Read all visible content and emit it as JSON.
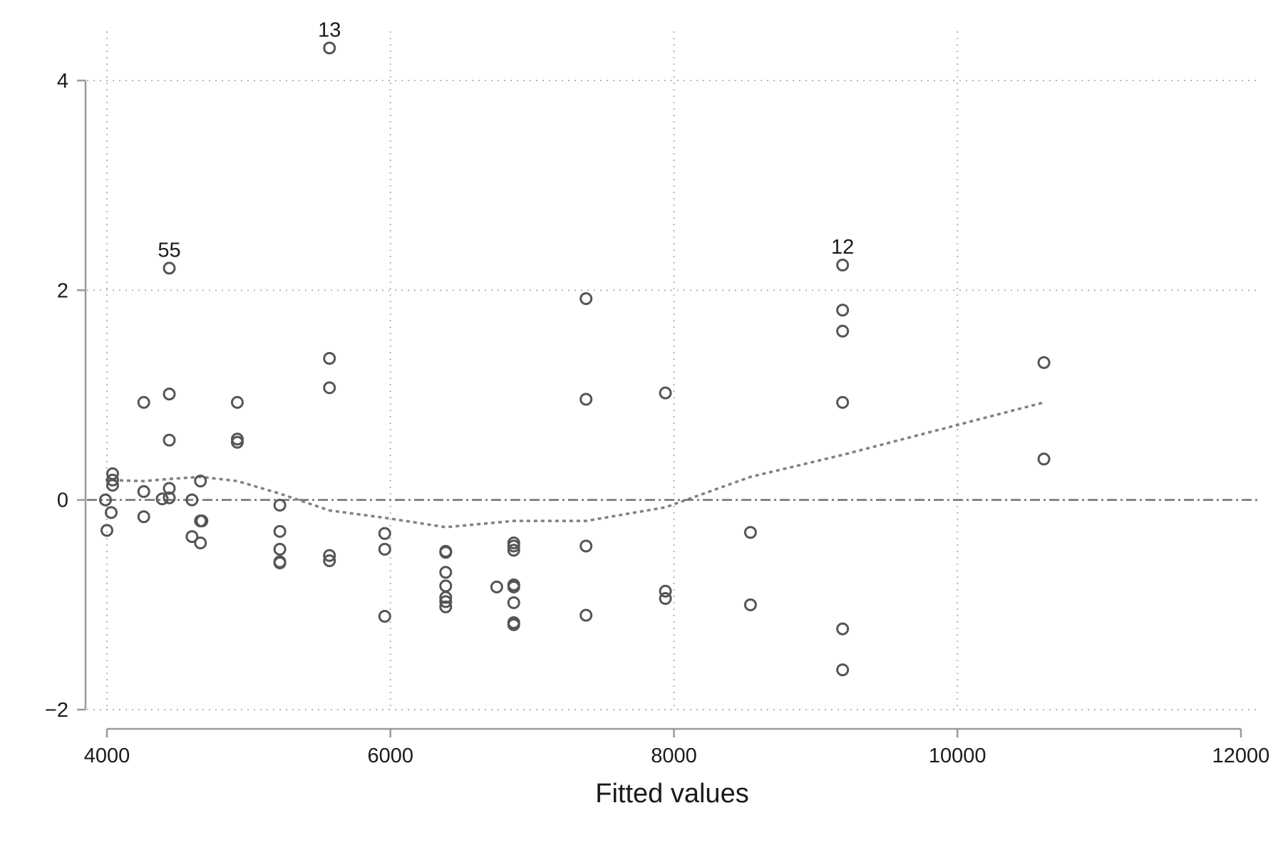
{
  "chart_data": {
    "type": "scatter",
    "title": "",
    "xlabel": "Fitted values",
    "ylabel": "",
    "xlim": [
      4000,
      12000
    ],
    "ylim": [
      -2,
      4
    ],
    "x_ticks": [
      4000,
      6000,
      8000,
      10000,
      12000
    ],
    "x_tick_labels": [
      "4000",
      "6000",
      "8000",
      "10000",
      "12000"
    ],
    "y_ticks": [
      -2,
      0,
      2,
      4
    ],
    "y_tick_labels": [
      "−2",
      "0",
      "2",
      "4"
    ],
    "grid": true,
    "reference_line_y": 0,
    "colors": {
      "points": "#555555",
      "smooth": "#808080",
      "reference": "#707070",
      "grid": "#b5b5b5",
      "axis": "#9a9a9a"
    },
    "points": [
      {
        "x": 3990,
        "y": 0.0
      },
      {
        "x": 4000,
        "y": -0.29
      },
      {
        "x": 4030,
        "y": -0.12
      },
      {
        "x": 4040,
        "y": 0.25
      },
      {
        "x": 4040,
        "y": 0.19
      },
      {
        "x": 4040,
        "y": 0.14
      },
      {
        "x": 4260,
        "y": 0.93
      },
      {
        "x": 4260,
        "y": 0.08
      },
      {
        "x": 4260,
        "y": -0.16
      },
      {
        "x": 4390,
        "y": 0.01
      },
      {
        "x": 4440,
        "y": 2.21
      },
      {
        "x": 4440,
        "y": 1.01
      },
      {
        "x": 4440,
        "y": 0.57
      },
      {
        "x": 4440,
        "y": 0.11
      },
      {
        "x": 4440,
        "y": 0.02
      },
      {
        "x": 4600,
        "y": 0.0
      },
      {
        "x": 4600,
        "y": -0.35
      },
      {
        "x": 4660,
        "y": 0.18
      },
      {
        "x": 4660,
        "y": -0.2
      },
      {
        "x": 4660,
        "y": -0.41
      },
      {
        "x": 4670,
        "y": -0.2
      },
      {
        "x": 4920,
        "y": 0.93
      },
      {
        "x": 4920,
        "y": 0.58
      },
      {
        "x": 4920,
        "y": 0.55
      },
      {
        "x": 5220,
        "y": -0.05
      },
      {
        "x": 5220,
        "y": -0.3
      },
      {
        "x": 5220,
        "y": -0.47
      },
      {
        "x": 5220,
        "y": -0.59
      },
      {
        "x": 5220,
        "y": -0.6
      },
      {
        "x": 5570,
        "y": 4.31
      },
      {
        "x": 5570,
        "y": 1.35
      },
      {
        "x": 5570,
        "y": 1.07
      },
      {
        "x": 5570,
        "y": -0.53
      },
      {
        "x": 5570,
        "y": -0.58
      },
      {
        "x": 5960,
        "y": -0.32
      },
      {
        "x": 5960,
        "y": -0.47
      },
      {
        "x": 5960,
        "y": -1.11
      },
      {
        "x": 6390,
        "y": -0.49
      },
      {
        "x": 6390,
        "y": -0.5
      },
      {
        "x": 6390,
        "y": -0.69
      },
      {
        "x": 6390,
        "y": -0.82
      },
      {
        "x": 6390,
        "y": -0.93
      },
      {
        "x": 6390,
        "y": -0.97
      },
      {
        "x": 6390,
        "y": -1.02
      },
      {
        "x": 6750,
        "y": -0.83
      },
      {
        "x": 6870,
        "y": -0.41
      },
      {
        "x": 6870,
        "y": -0.44
      },
      {
        "x": 6870,
        "y": -0.48
      },
      {
        "x": 6870,
        "y": -0.81
      },
      {
        "x": 6870,
        "y": -0.83
      },
      {
        "x": 6870,
        "y": -0.98
      },
      {
        "x": 6870,
        "y": -1.17
      },
      {
        "x": 6870,
        "y": -1.19
      },
      {
        "x": 7380,
        "y": 1.92
      },
      {
        "x": 7380,
        "y": 0.96
      },
      {
        "x": 7380,
        "y": -0.44
      },
      {
        "x": 7380,
        "y": -1.1
      },
      {
        "x": 7940,
        "y": 1.02
      },
      {
        "x": 7940,
        "y": -0.87
      },
      {
        "x": 7940,
        "y": -0.94
      },
      {
        "x": 8540,
        "y": -0.31
      },
      {
        "x": 8540,
        "y": -1.0
      },
      {
        "x": 9190,
        "y": 2.24
      },
      {
        "x": 9190,
        "y": 1.81
      },
      {
        "x": 9190,
        "y": 1.61
      },
      {
        "x": 9190,
        "y": 0.93
      },
      {
        "x": 9190,
        "y": -1.23
      },
      {
        "x": 9190,
        "y": -1.62
      },
      {
        "x": 10610,
        "y": 1.31
      },
      {
        "x": 10610,
        "y": 0.39
      }
    ],
    "annotations": [
      {
        "text": "13",
        "x": 5570,
        "y": 4.31
      },
      {
        "text": "55",
        "x": 4440,
        "y": 2.21
      },
      {
        "text": "12",
        "x": 9190,
        "y": 2.24
      }
    ],
    "smooth_line": [
      {
        "x": 3990,
        "y": 0.19
      },
      {
        "x": 4260,
        "y": 0.18
      },
      {
        "x": 4440,
        "y": 0.2
      },
      {
        "x": 4660,
        "y": 0.22
      },
      {
        "x": 4920,
        "y": 0.18
      },
      {
        "x": 5220,
        "y": 0.06
      },
      {
        "x": 5570,
        "y": -0.1
      },
      {
        "x": 5960,
        "y": -0.17
      },
      {
        "x": 6390,
        "y": -0.26
      },
      {
        "x": 6870,
        "y": -0.2
      },
      {
        "x": 7380,
        "y": -0.2
      },
      {
        "x": 7940,
        "y": -0.07
      },
      {
        "x": 8540,
        "y": 0.22
      },
      {
        "x": 9190,
        "y": 0.43
      },
      {
        "x": 10610,
        "y": 0.93
      }
    ]
  }
}
